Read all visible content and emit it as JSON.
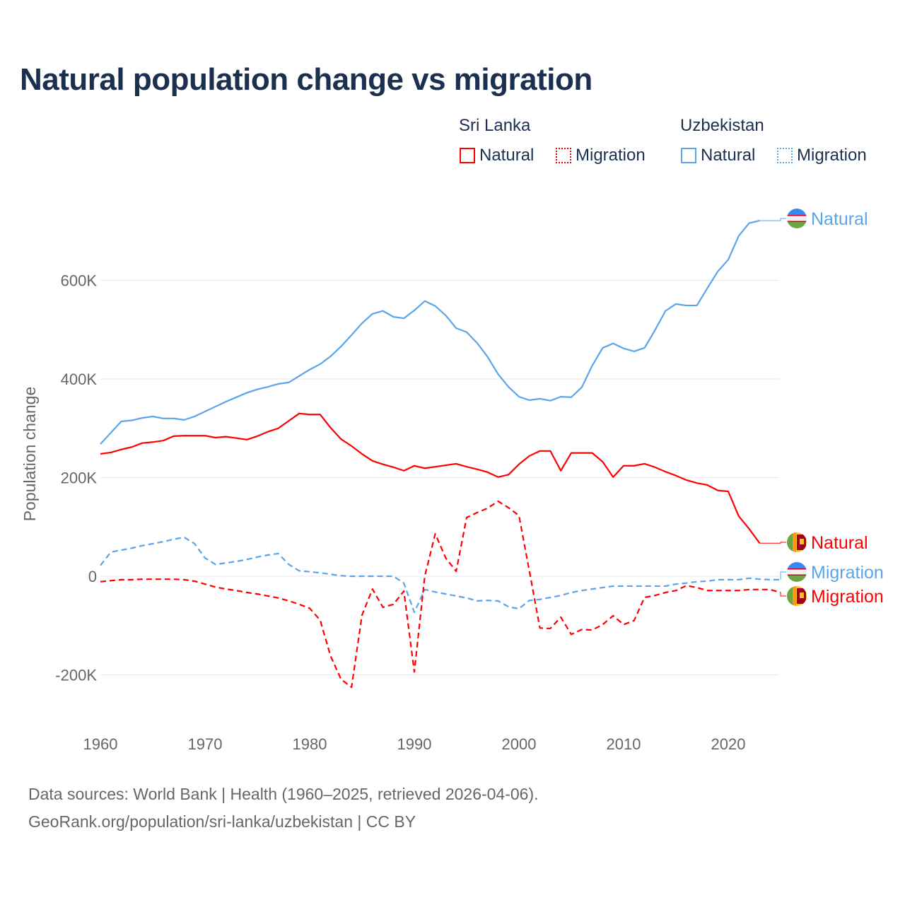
{
  "chart_data": {
    "type": "line",
    "title": "Natural population change vs migration",
    "xlabel": "",
    "ylabel": "Population change",
    "xlim": [
      1960,
      2025
    ],
    "ylim": [
      -300000,
      800000
    ],
    "x_ticks": [
      "1960",
      "1970",
      "1980",
      "1990",
      "2000",
      "2010",
      "2020"
    ],
    "y_ticks": [
      {
        "value": -200000,
        "label": "-200K"
      },
      {
        "value": 0,
        "label": "0"
      },
      {
        "value": 200000,
        "label": "200K"
      },
      {
        "value": 400000,
        "label": "400K"
      },
      {
        "value": 600000,
        "label": "600K"
      }
    ],
    "grid": true,
    "legend": {
      "placement": "top-right",
      "groups": [
        {
          "country": "Sri Lanka",
          "items": [
            "Natural",
            "Migration"
          ]
        },
        {
          "country": "Uzbekistan",
          "items": [
            "Natural",
            "Migration"
          ]
        }
      ]
    },
    "units_note": "values in thousands",
    "series": [
      {
        "name": "Uzbekistan Natural",
        "country": "Uzbekistan",
        "kind": "Natural",
        "end_label": "Natural",
        "color": "#5aa5ea",
        "dashed": false,
        "start_year": 1960,
        "values": [
          268,
          291,
          314,
          316,
          321,
          324,
          320,
          320,
          317,
          324,
          334,
          344,
          354,
          363,
          372,
          379,
          384,
          390,
          393,
          406,
          419,
          430,
          446,
          466,
          489,
          513,
          532,
          538,
          526,
          523,
          539,
          558,
          548,
          529,
          503,
          495,
          473,
          445,
          410,
          384,
          364,
          357,
          360,
          356,
          364,
          363,
          383,
          427,
          463,
          472,
          462,
          456,
          463,
          499,
          538,
          552,
          549,
          549,
          584,
          618,
          642,
          690,
          716,
          721
        ]
      },
      {
        "name": "Sri Lanka Natural",
        "country": "Sri Lanka",
        "kind": "Natural",
        "end_label": "Natural",
        "color": "#ff0000",
        "dashed": false,
        "start_year": 1960,
        "values": [
          248,
          251,
          257,
          262,
          270,
          272,
          275,
          284,
          285,
          285,
          285,
          281,
          283,
          280,
          277,
          284,
          293,
          300,
          315,
          330,
          328,
          328,
          301,
          278,
          264,
          248,
          234,
          227,
          221,
          214,
          224,
          219,
          222,
          225,
          228,
          222,
          217,
          211,
          201,
          206,
          227,
          244,
          254,
          254,
          214,
          250,
          250,
          250,
          232,
          201,
          224,
          224,
          228,
          221,
          212,
          204,
          195,
          189,
          185,
          174,
          172,
          122,
          96,
          67
        ]
      },
      {
        "name": "Uzbekistan Migration",
        "country": "Uzbekistan",
        "kind": "Migration",
        "end_label": "Migration",
        "color": "#5aa5ea",
        "dashed": true,
        "start_year": 1960,
        "values": [
          22,
          49,
          53,
          57,
          62,
          66,
          70,
          75,
          79,
          66,
          37,
          24,
          27,
          30,
          34,
          39,
          43,
          46,
          24,
          11,
          9,
          7,
          4,
          1,
          0,
          0,
          0,
          0,
          0,
          -14,
          -73,
          -27,
          -32,
          -36,
          -40,
          -44,
          -50,
          -49,
          -50,
          -62,
          -66,
          -49,
          -47,
          -43,
          -39,
          -33,
          -29,
          -26,
          -23,
          -20,
          -20,
          -20,
          -20,
          -20,
          -20,
          -16,
          -14,
          -11,
          -10,
          -7,
          -7,
          -7,
          -4,
          -6,
          -7,
          -7
        ]
      },
      {
        "name": "Sri Lanka Migration",
        "country": "Sri Lanka",
        "kind": "Migration",
        "end_label": "Migration",
        "color": "#ff0000",
        "dashed": true,
        "start_year": 1960,
        "values": [
          -11,
          -9,
          -7,
          -7,
          -6,
          -6,
          -6,
          -6,
          -7,
          -10,
          -16,
          -22,
          -26,
          -29,
          -33,
          -36,
          -40,
          -44,
          -50,
          -57,
          -65,
          -89,
          -162,
          -209,
          -225,
          -79,
          -26,
          -63,
          -57,
          -30,
          -194,
          0,
          86,
          37,
          10,
          119,
          129,
          138,
          152,
          139,
          123,
          10,
          -105,
          -106,
          -83,
          -118,
          -108,
          -109,
          -98,
          -80,
          -98,
          -90,
          -43,
          -39,
          -33,
          -29,
          -19,
          -23,
          -29,
          -29,
          -29,
          -29,
          -27,
          -27,
          -27,
          -33
        ]
      }
    ]
  },
  "legend": {
    "sri_lanka": "Sri Lanka",
    "uzbekistan": "Uzbekistan",
    "natural": "Natural",
    "migration": "Migration"
  },
  "footer": {
    "line1": "Data sources: World Bank | Health (1960–2025, retrieved 2026-04-06).",
    "line2": "GeoRank.org/population/sri-lanka/uzbekistan | CC BY"
  },
  "colors": {
    "sri_lanka": "#ff0000",
    "uzbekistan": "#5aa5ea",
    "title": "#1b2f4e",
    "axis_text": "#666666",
    "grid": "#e6e6e6"
  }
}
